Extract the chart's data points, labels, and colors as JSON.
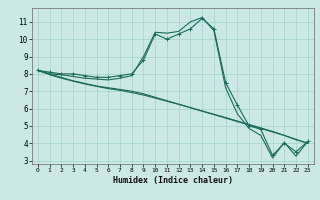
{
  "xlabel": "Humidex (Indice chaleur)",
  "ylabel": "",
  "bg_color": "#cce8e4",
  "grid_color": "#aad4d0",
  "line_color": "#1a6b5a",
  "xlim": [
    -0.5,
    23.5
  ],
  "ylim": [
    2.8,
    11.8
  ],
  "xticks": [
    0,
    1,
    2,
    3,
    4,
    5,
    6,
    7,
    8,
    9,
    10,
    11,
    12,
    13,
    14,
    15,
    16,
    17,
    18,
    19,
    20,
    21,
    22,
    23
  ],
  "yticks": [
    3,
    4,
    5,
    6,
    7,
    8,
    9,
    10,
    11
  ],
  "series": [
    {
      "x": [
        0,
        1,
        2,
        3,
        4,
        5,
        6,
        7,
        8,
        9,
        10,
        11,
        12,
        13,
        14,
        15,
        16,
        17,
        18,
        19,
        20,
        21,
        22,
        23
      ],
      "y": [
        8.2,
        8.1,
        8.0,
        8.0,
        7.9,
        7.8,
        7.8,
        7.9,
        8.0,
        8.8,
        10.3,
        10.0,
        10.3,
        10.6,
        11.2,
        10.6,
        7.5,
        6.2,
        5.0,
        4.8,
        3.3,
        4.0,
        3.5,
        4.1
      ],
      "has_markers": true
    },
    {
      "x": [
        0,
        1,
        2,
        3,
        4,
        5,
        6,
        7,
        8,
        9,
        10,
        11,
        12,
        13,
        14,
        15,
        16,
        17,
        18,
        19,
        20,
        21,
        22,
        23
      ],
      "y": [
        8.2,
        8.0,
        7.95,
        7.85,
        7.75,
        7.7,
        7.65,
        7.75,
        7.9,
        9.0,
        10.4,
        10.35,
        10.45,
        11.0,
        11.25,
        10.5,
        7.2,
        5.7,
        4.85,
        4.45,
        3.15,
        4.05,
        3.25,
        4.1
      ],
      "has_markers": false
    },
    {
      "x": [
        0,
        1,
        2,
        3,
        4,
        5,
        6,
        7,
        8,
        9,
        10,
        11,
        12,
        13,
        14,
        15,
        16,
        17,
        18,
        19,
        20,
        21,
        22,
        23
      ],
      "y": [
        8.2,
        8.0,
        7.8,
        7.6,
        7.45,
        7.3,
        7.2,
        7.1,
        7.0,
        6.85,
        6.65,
        6.45,
        6.25,
        6.05,
        5.85,
        5.65,
        5.45,
        5.25,
        5.05,
        4.85,
        4.65,
        4.45,
        4.2,
        4.0
      ],
      "has_markers": false
    },
    {
      "x": [
        0,
        1,
        2,
        3,
        4,
        5,
        6,
        7,
        8,
        9,
        10,
        11,
        12,
        13,
        14,
        15,
        16,
        17,
        18,
        19,
        20,
        21,
        22,
        23
      ],
      "y": [
        8.2,
        7.95,
        7.75,
        7.58,
        7.42,
        7.28,
        7.15,
        7.05,
        6.92,
        6.78,
        6.6,
        6.42,
        6.24,
        6.05,
        5.86,
        5.67,
        5.48,
        5.28,
        5.08,
        4.88,
        4.68,
        4.45,
        4.22,
        4.0
      ],
      "has_markers": false
    }
  ]
}
